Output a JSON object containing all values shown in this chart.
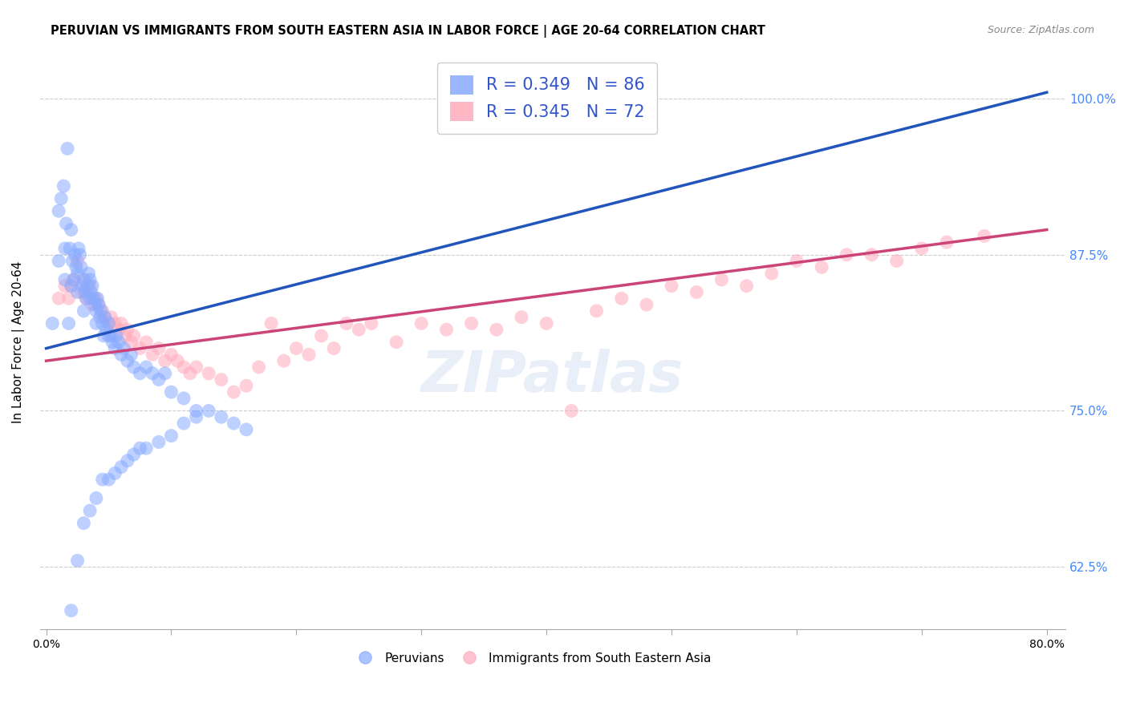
{
  "title": "PERUVIAN VS IMMIGRANTS FROM SOUTH EASTERN ASIA IN LABOR FORCE | AGE 20-64 CORRELATION CHART",
  "source": "Source: ZipAtlas.com",
  "ylabel": "In Labor Force | Age 20-64",
  "ytick_labels": [
    "62.5%",
    "75.0%",
    "87.5%",
    "100.0%"
  ],
  "ytick_values": [
    0.625,
    0.75,
    0.875,
    1.0
  ],
  "xtick_show": [
    "0.0%",
    "80.0%"
  ],
  "xtick_pos": [
    0.0,
    0.8
  ],
  "xlim": [
    -0.005,
    0.815
  ],
  "ylim": [
    0.575,
    1.035
  ],
  "legend_r1": "R = 0.349",
  "legend_n1": "N = 86",
  "legend_r2": "R = 0.345",
  "legend_n2": "N = 72",
  "blue_color": "#88aaff",
  "pink_color": "#ffaabb",
  "line_blue": "#2255bb",
  "line_pink": "#cc4477",
  "blue_line_x0": 0.0,
  "blue_line_x1": 0.8,
  "blue_line_y0": 0.8,
  "blue_line_y1": 1.005,
  "pink_line_x0": 0.0,
  "pink_line_x1": 0.8,
  "pink_line_y0": 0.79,
  "pink_line_y1": 0.895,
  "blue_scatter_x": [
    0.005,
    0.01,
    0.01,
    0.012,
    0.014,
    0.015,
    0.015,
    0.016,
    0.017,
    0.018,
    0.019,
    0.02,
    0.02,
    0.021,
    0.022,
    0.023,
    0.024,
    0.025,
    0.025,
    0.026,
    0.027,
    0.028,
    0.029,
    0.03,
    0.03,
    0.031,
    0.032,
    0.033,
    0.034,
    0.035,
    0.035,
    0.036,
    0.037,
    0.038,
    0.039,
    0.04,
    0.04,
    0.041,
    0.042,
    0.043,
    0.044,
    0.045,
    0.046,
    0.047,
    0.048,
    0.05,
    0.05,
    0.052,
    0.053,
    0.055,
    0.056,
    0.058,
    0.06,
    0.062,
    0.065,
    0.068,
    0.07,
    0.075,
    0.08,
    0.085,
    0.09,
    0.095,
    0.1,
    0.11,
    0.12,
    0.13,
    0.14,
    0.15,
    0.16,
    0.02,
    0.025,
    0.03,
    0.035,
    0.04,
    0.045,
    0.05,
    0.055,
    0.06,
    0.065,
    0.07,
    0.075,
    0.08,
    0.09,
    0.1,
    0.11,
    0.12
  ],
  "blue_scatter_y": [
    0.82,
    0.87,
    0.91,
    0.92,
    0.93,
    0.855,
    0.88,
    0.9,
    0.96,
    0.82,
    0.88,
    0.85,
    0.895,
    0.87,
    0.855,
    0.875,
    0.865,
    0.845,
    0.86,
    0.88,
    0.875,
    0.865,
    0.85,
    0.83,
    0.855,
    0.845,
    0.84,
    0.85,
    0.86,
    0.84,
    0.855,
    0.845,
    0.85,
    0.84,
    0.835,
    0.82,
    0.83,
    0.84,
    0.835,
    0.825,
    0.83,
    0.82,
    0.81,
    0.825,
    0.815,
    0.81,
    0.82,
    0.81,
    0.805,
    0.8,
    0.81,
    0.805,
    0.795,
    0.8,
    0.79,
    0.795,
    0.785,
    0.78,
    0.785,
    0.78,
    0.775,
    0.78,
    0.765,
    0.76,
    0.75,
    0.75,
    0.745,
    0.74,
    0.735,
    0.59,
    0.63,
    0.66,
    0.67,
    0.68,
    0.695,
    0.695,
    0.7,
    0.705,
    0.71,
    0.715,
    0.72,
    0.72,
    0.725,
    0.73,
    0.74,
    0.745
  ],
  "pink_scatter_x": [
    0.01,
    0.015,
    0.018,
    0.02,
    0.022,
    0.025,
    0.028,
    0.03,
    0.032,
    0.035,
    0.037,
    0.04,
    0.042,
    0.045,
    0.047,
    0.05,
    0.052,
    0.055,
    0.058,
    0.06,
    0.063,
    0.065,
    0.068,
    0.07,
    0.075,
    0.08,
    0.085,
    0.09,
    0.095,
    0.1,
    0.105,
    0.11,
    0.115,
    0.12,
    0.13,
    0.14,
    0.15,
    0.16,
    0.17,
    0.18,
    0.19,
    0.2,
    0.21,
    0.22,
    0.23,
    0.24,
    0.25,
    0.26,
    0.28,
    0.3,
    0.32,
    0.34,
    0.36,
    0.38,
    0.4,
    0.42,
    0.44,
    0.46,
    0.48,
    0.5,
    0.52,
    0.54,
    0.56,
    0.58,
    0.6,
    0.62,
    0.64,
    0.66,
    0.68,
    0.7,
    0.72,
    0.75
  ],
  "pink_scatter_y": [
    0.84,
    0.85,
    0.84,
    0.85,
    0.855,
    0.87,
    0.845,
    0.855,
    0.84,
    0.85,
    0.835,
    0.84,
    0.835,
    0.83,
    0.825,
    0.82,
    0.825,
    0.82,
    0.815,
    0.82,
    0.81,
    0.815,
    0.805,
    0.81,
    0.8,
    0.805,
    0.795,
    0.8,
    0.79,
    0.795,
    0.79,
    0.785,
    0.78,
    0.785,
    0.78,
    0.775,
    0.765,
    0.77,
    0.785,
    0.82,
    0.79,
    0.8,
    0.795,
    0.81,
    0.8,
    0.82,
    0.815,
    0.82,
    0.805,
    0.82,
    0.815,
    0.82,
    0.815,
    0.825,
    0.82,
    0.75,
    0.83,
    0.84,
    0.835,
    0.85,
    0.845,
    0.855,
    0.85,
    0.86,
    0.87,
    0.865,
    0.875,
    0.875,
    0.87,
    0.88,
    0.885,
    0.89
  ],
  "watermark_text": "ZIPatlas",
  "legend_blue_label": "Peruvians",
  "legend_pink_label": "Immigrants from South Eastern Asia"
}
